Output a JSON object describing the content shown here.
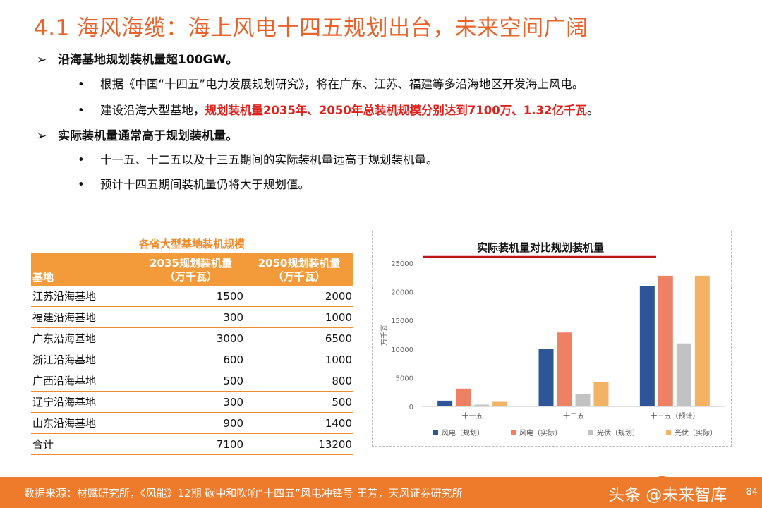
{
  "header": {
    "title": "4.1 海风海缆：海上风电十四五规划出台，未来空间广阔"
  },
  "bullets": [
    {
      "marker": "➢",
      "text": "沿海基地规划装机量超100GW。",
      "items": [
        {
          "marker": "•",
          "pre": "根据《中国“十四五”电力发展规划研究》，将在广东、江苏、福建等多沿海地区开发海上风电。",
          "highlight": "",
          "post": ""
        },
        {
          "marker": "•",
          "pre": "建设沿海大型基地，",
          "highlight": "规划装机量2035年、2050年总装机规模分别达到7100万、1.32亿千瓦",
          "post": "。"
        }
      ]
    },
    {
      "marker": "➢",
      "text": "实际装机量通常高于规划装机量。",
      "items": [
        {
          "marker": "•",
          "pre": "十一五、十二五以及十三五期间的实际装机量远高于规划装机量。",
          "highlight": "",
          "post": ""
        },
        {
          "marker": "•",
          "pre": "预计十四五期间装机量仍将大于规划值。",
          "highlight": "",
          "post": ""
        }
      ]
    }
  ],
  "table": {
    "caption": "各省大型基地装机规模",
    "headers": [
      "基地",
      "2035规划装机量",
      "（万千瓦）",
      "2050规划装机量",
      "（万千瓦）"
    ],
    "rows": [
      [
        "江苏沿海基地",
        "1500",
        "2000"
      ],
      [
        "福建沿海基地",
        "300",
        "1000"
      ],
      [
        "广东沿海基地",
        "3000",
        "6500"
      ],
      [
        "浙江沿海基地",
        "600",
        "1000"
      ],
      [
        "广西沿海基地",
        "500",
        "800"
      ],
      [
        "辽宁沿海基地",
        "300",
        "500"
      ],
      [
        "山东沿海基地",
        "900",
        "1400"
      ],
      [
        "合计",
        "7100",
        "13200"
      ]
    ]
  },
  "chart_data": {
    "type": "bar",
    "title": "实际装机量对比规划装机量",
    "ylabel": "万千瓦",
    "xlabel": "",
    "ylim": [
      0,
      25000
    ],
    "yticks": [
      0,
      5000,
      10000,
      15000,
      20000,
      25000
    ],
    "categories": [
      "十一五",
      "十二五",
      "十三五（预计）"
    ],
    "series": [
      {
        "name": "风电（规划）",
        "color": "#2e5597",
        "values": [
          1000,
          10000,
          21000
        ]
      },
      {
        "name": "风电（实际）",
        "color": "#ee8164",
        "values": [
          3100,
          12900,
          22800
        ]
      },
      {
        "name": "光伏（规划）",
        "color": "#c2c2c2",
        "values": [
          300,
          2100,
          11000
        ]
      },
      {
        "name": "光伏（实际）",
        "color": "#f3b264",
        "values": [
          800,
          4300,
          22800
        ]
      }
    ],
    "legend_position": "bottom",
    "grid": false
  },
  "footer": {
    "source": "数据来源：材赋研究所，《风能》12期 碳中和吹响“十四五”风电冲锋号 王芳，天风证券研究所",
    "watermark": "头条 @未来智库",
    "page_number": "84"
  }
}
